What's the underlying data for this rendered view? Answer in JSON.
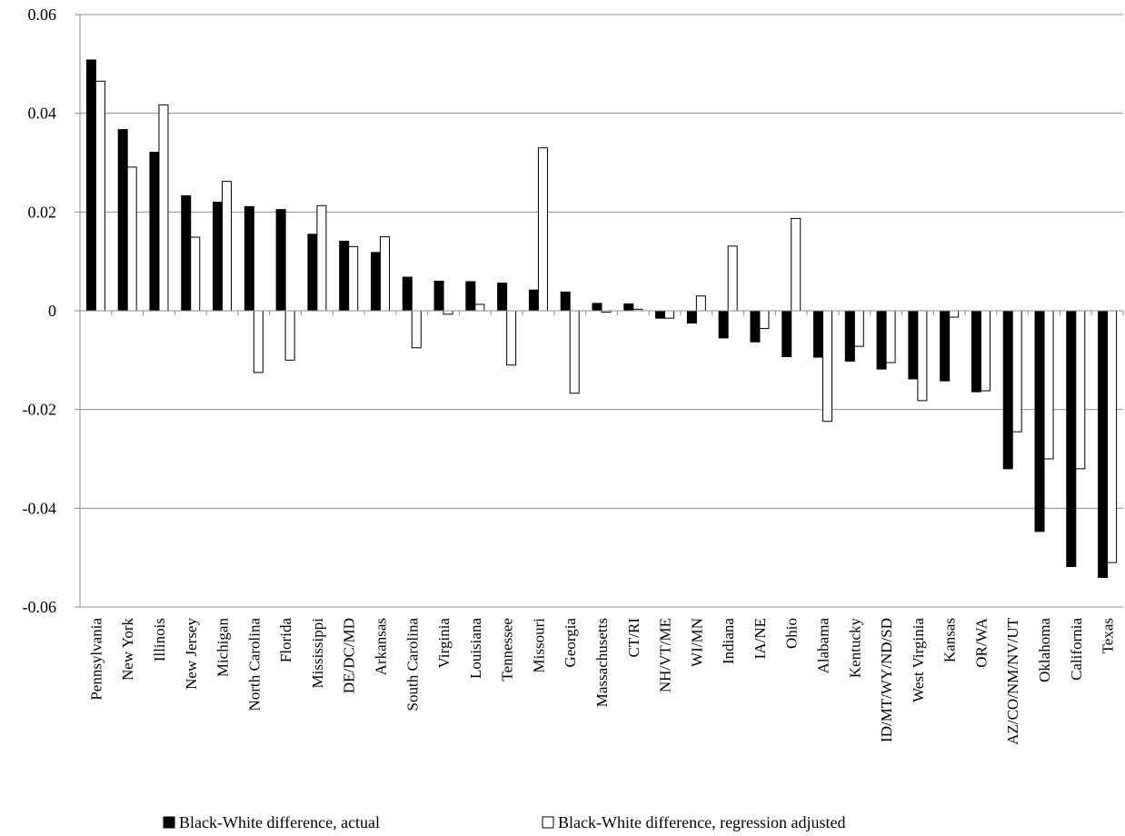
{
  "chart_data": {
    "type": "bar",
    "title": "",
    "xlabel": "",
    "ylabel": "",
    "ylim": [
      -0.06,
      0.06
    ],
    "yticks": [
      0.06,
      0.04,
      0.02,
      0,
      -0.02,
      -0.04,
      -0.06
    ],
    "ytick_labels": [
      "0.06",
      "0.04",
      "0.02",
      "0",
      "-0.02",
      "-0.04",
      "-0.06"
    ],
    "grid": "horizontal",
    "legend_position": "bottom",
    "categories": [
      "Pennsylvania",
      "New York",
      "Illinois",
      "New Jersey",
      "Michigan",
      "North Carolina",
      "Florida",
      "Mississippi",
      "DE/DC/MD",
      "Arkansas",
      "South Carolina",
      "Virginia",
      "Louisiana",
      "Tennessee",
      "Missouri",
      "Georgia",
      "Massachusetts",
      "CT/RI",
      "NH/VT/ME",
      "WI/MN",
      "Indiana",
      "IA/NE",
      "Ohio",
      "Alabama",
      "Kentucky",
      "ID/MT/WY/ND/SD",
      "West Virginia",
      "Kansas",
      "OR/WA",
      "AZ/CO/NM/NV/UT",
      "Oklahoma",
      "California",
      "Texas"
    ],
    "series": [
      {
        "name": "Black-White difference, actual",
        "color": "#000000",
        "values": [
          0.0508,
          0.0367,
          0.0321,
          0.0233,
          0.022,
          0.0211,
          0.0205,
          0.0155,
          0.0141,
          0.0118,
          0.0068,
          0.006,
          0.0059,
          0.0056,
          0.0042,
          0.0038,
          0.0015,
          0.0014,
          -0.0015,
          -0.0025,
          -0.0055,
          -0.0063,
          -0.0093,
          -0.0094,
          -0.0102,
          -0.0118,
          -0.0138,
          -0.0142,
          -0.0164,
          -0.032,
          -0.0447,
          -0.0518,
          -0.054
        ]
      },
      {
        "name": "Black-White difference, regression adjusted",
        "color": "#ffffff",
        "values": [
          0.0465,
          0.0291,
          0.0417,
          0.0149,
          0.0262,
          -0.0125,
          -0.01,
          0.0213,
          0.013,
          0.015,
          -0.0075,
          -0.0007,
          0.0013,
          -0.011,
          0.033,
          -0.0167,
          -0.0003,
          0.0003,
          -0.0015,
          0.003,
          0.0131,
          -0.0036,
          0.0187,
          -0.0224,
          -0.0072,
          -0.0105,
          -0.0182,
          -0.0013,
          -0.0162,
          -0.0245,
          -0.03,
          -0.032,
          -0.051
        ]
      }
    ]
  }
}
